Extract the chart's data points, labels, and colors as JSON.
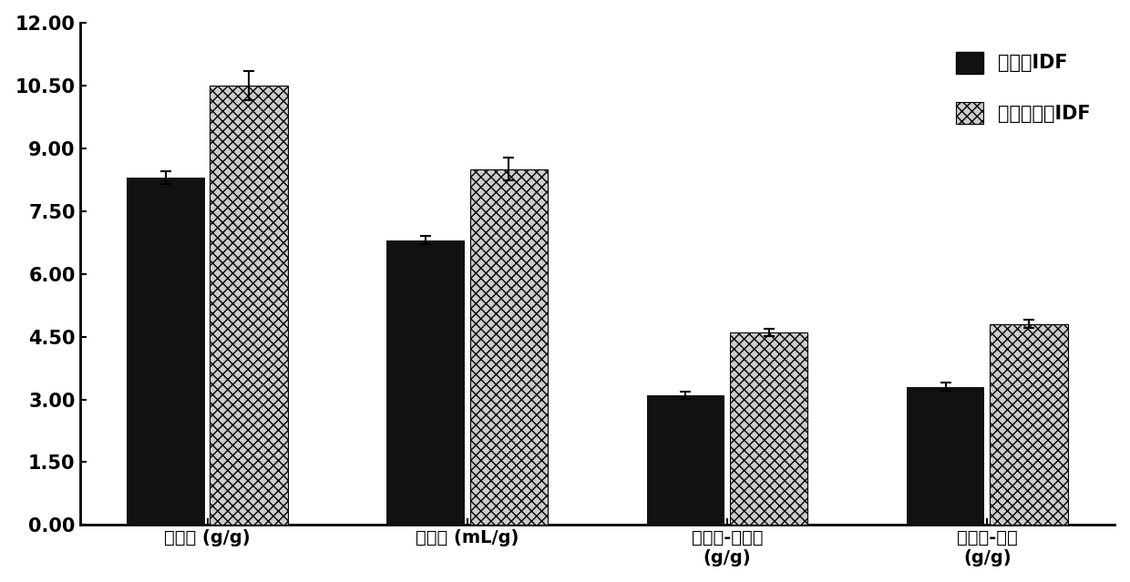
{
  "categories": [
    "持水力 (g/g)",
    "膨胀力 (mL/g)",
    "持油力-花生油\n(g/g)",
    "持油力-猪油\n(g/g)"
  ],
  "black_values": [
    8.3,
    6.8,
    3.1,
    3.3
  ],
  "dotted_values": [
    10.5,
    8.5,
    4.6,
    4.8
  ],
  "black_errors": [
    0.15,
    0.1,
    0.08,
    0.1
  ],
  "dotted_errors": [
    0.35,
    0.28,
    0.08,
    0.1
  ],
  "ylim": [
    0,
    12.0
  ],
  "yticks": [
    0.0,
    1.5,
    3.0,
    4.5,
    6.0,
    7.5,
    9.0,
    10.5,
    12.0
  ],
  "ytick_labels": [
    "0.00",
    "1.50",
    "3.00",
    "4.50",
    "6.00",
    "7.50",
    "9.00",
    "10.50",
    "12.00"
  ],
  "legend_labels": [
    "未改性IDF",
    "复合酶改性IDF"
  ],
  "bar_width": 0.3,
  "background_color": "#ffffff",
  "bar_color_black": "#111111",
  "bar_color_dotted": "#cccccc"
}
